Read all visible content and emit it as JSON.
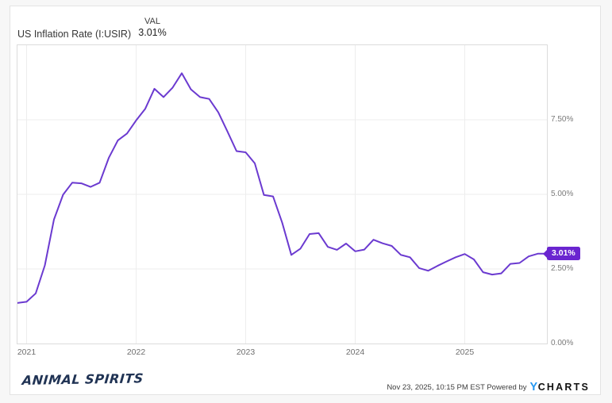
{
  "header": {
    "title": "US Inflation Rate (I:USIR)",
    "val_label": "VAL",
    "val_value": "3.01%"
  },
  "badge": {
    "label": "3.01%"
  },
  "footer": {
    "brand": "ANIMAL SPIRITS",
    "attribution": "Nov 23, 2025, 10:15 PM EST Powered by",
    "logo_y": "Y",
    "logo_rest": "CHARTS"
  },
  "colors": {
    "line": "#6b3ad0",
    "badge": "#6a25d0",
    "grid": "#ededed",
    "plot_border": "#dcdcdc",
    "logo_blue": "#2496f0",
    "brand_navy": "#203354"
  },
  "chart_data": {
    "type": "line",
    "title": "US Inflation Rate (I:USIR)",
    "ylabel": "",
    "xlabel": "",
    "ylim": [
      0,
      10
    ],
    "grid": true,
    "legend_position": "none",
    "latest_value": 3.01,
    "latest_label": "3.01%",
    "y_ticks": [
      {
        "value": 0,
        "label": "0.00%"
      },
      {
        "value": 2.5,
        "label": "2.50%"
      },
      {
        "value": 5,
        "label": "5.00%"
      },
      {
        "value": 7.5,
        "label": "7.50%"
      }
    ],
    "x_ticks": [
      {
        "month": "2021-01",
        "label": "2021"
      },
      {
        "month": "2022-01",
        "label": "2022"
      },
      {
        "month": "2023-01",
        "label": "2023"
      },
      {
        "month": "2024-01",
        "label": "2024"
      },
      {
        "month": "2025-01",
        "label": "2025"
      }
    ],
    "series": [
      {
        "name": "US Inflation Rate (I:USIR)",
        "x": [
          "2020-12",
          "2021-01",
          "2021-02",
          "2021-03",
          "2021-04",
          "2021-05",
          "2021-06",
          "2021-07",
          "2021-08",
          "2021-09",
          "2021-10",
          "2021-11",
          "2021-12",
          "2022-01",
          "2022-02",
          "2022-03",
          "2022-04",
          "2022-05",
          "2022-06",
          "2022-07",
          "2022-08",
          "2022-09",
          "2022-10",
          "2022-11",
          "2022-12",
          "2023-01",
          "2023-02",
          "2023-03",
          "2023-04",
          "2023-05",
          "2023-06",
          "2023-07",
          "2023-08",
          "2023-09",
          "2023-10",
          "2023-11",
          "2023-12",
          "2024-01",
          "2024-02",
          "2024-03",
          "2024-04",
          "2024-05",
          "2024-06",
          "2024-07",
          "2024-08",
          "2024-09",
          "2024-10",
          "2024-11",
          "2024-12",
          "2025-01",
          "2025-02",
          "2025-03",
          "2025-04",
          "2025-05",
          "2025-06",
          "2025-07",
          "2025-08",
          "2025-09",
          "2025-10"
        ],
        "values": [
          1.36,
          1.4,
          1.68,
          2.62,
          4.16,
          4.99,
          5.39,
          5.37,
          5.25,
          5.39,
          6.22,
          6.81,
          7.04,
          7.48,
          7.87,
          8.54,
          8.26,
          8.58,
          9.06,
          8.52,
          8.26,
          8.2,
          7.75,
          7.11,
          6.45,
          6.41,
          6.04,
          4.98,
          4.93,
          4.05,
          2.97,
          3.18,
          3.67,
          3.7,
          3.24,
          3.14,
          3.35,
          3.09,
          3.15,
          3.48,
          3.36,
          3.27,
          2.97,
          2.89,
          2.53,
          2.44,
          2.6,
          2.75,
          2.89,
          3.0,
          2.82,
          2.39,
          2.31,
          2.35,
          2.67,
          2.7,
          2.92,
          3.01,
          3.01
        ]
      }
    ]
  }
}
